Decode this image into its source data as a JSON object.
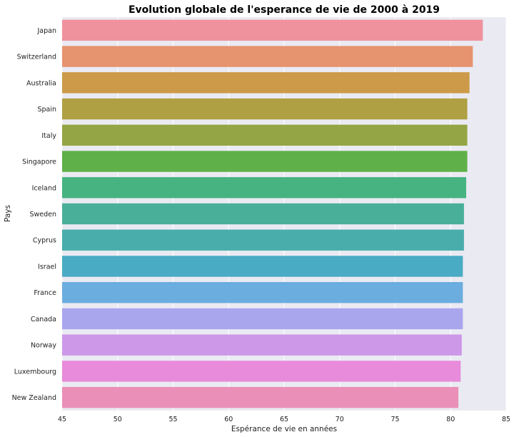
{
  "chart_data": {
    "type": "bar",
    "orientation": "horizontal",
    "title": "Evolution globale de l'esperance de vie de 2000 à 2019",
    "xlabel": "Espérance de vie en années",
    "ylabel": "Pays",
    "xlim": [
      45,
      85
    ],
    "xticks": [
      45,
      50,
      55,
      60,
      65,
      70,
      75,
      80,
      85
    ],
    "grid": true,
    "categories": [
      "Japan",
      "Switzerland",
      "Australia",
      "Spain",
      "Italy",
      "Singapore",
      "Iceland",
      "Sweden",
      "Cyprus",
      "Israel",
      "France",
      "Canada",
      "Norway",
      "Luxembourg",
      "New Zealand"
    ],
    "values": [
      82.9,
      82.0,
      81.7,
      81.5,
      81.5,
      81.5,
      81.4,
      81.2,
      81.2,
      81.1,
      81.1,
      81.1,
      81.0,
      80.9,
      80.7
    ],
    "colors": [
      "#f0929e",
      "#e69370",
      "#cc9a48",
      "#aea043",
      "#94a545",
      "#5fb048",
      "#47b380",
      "#49af99",
      "#49adab",
      "#4aabc5",
      "#6badde",
      "#a9a6ed",
      "#cd98e8",
      "#e78bda",
      "#ea8fb8"
    ],
    "background": "#eaeaf2"
  }
}
